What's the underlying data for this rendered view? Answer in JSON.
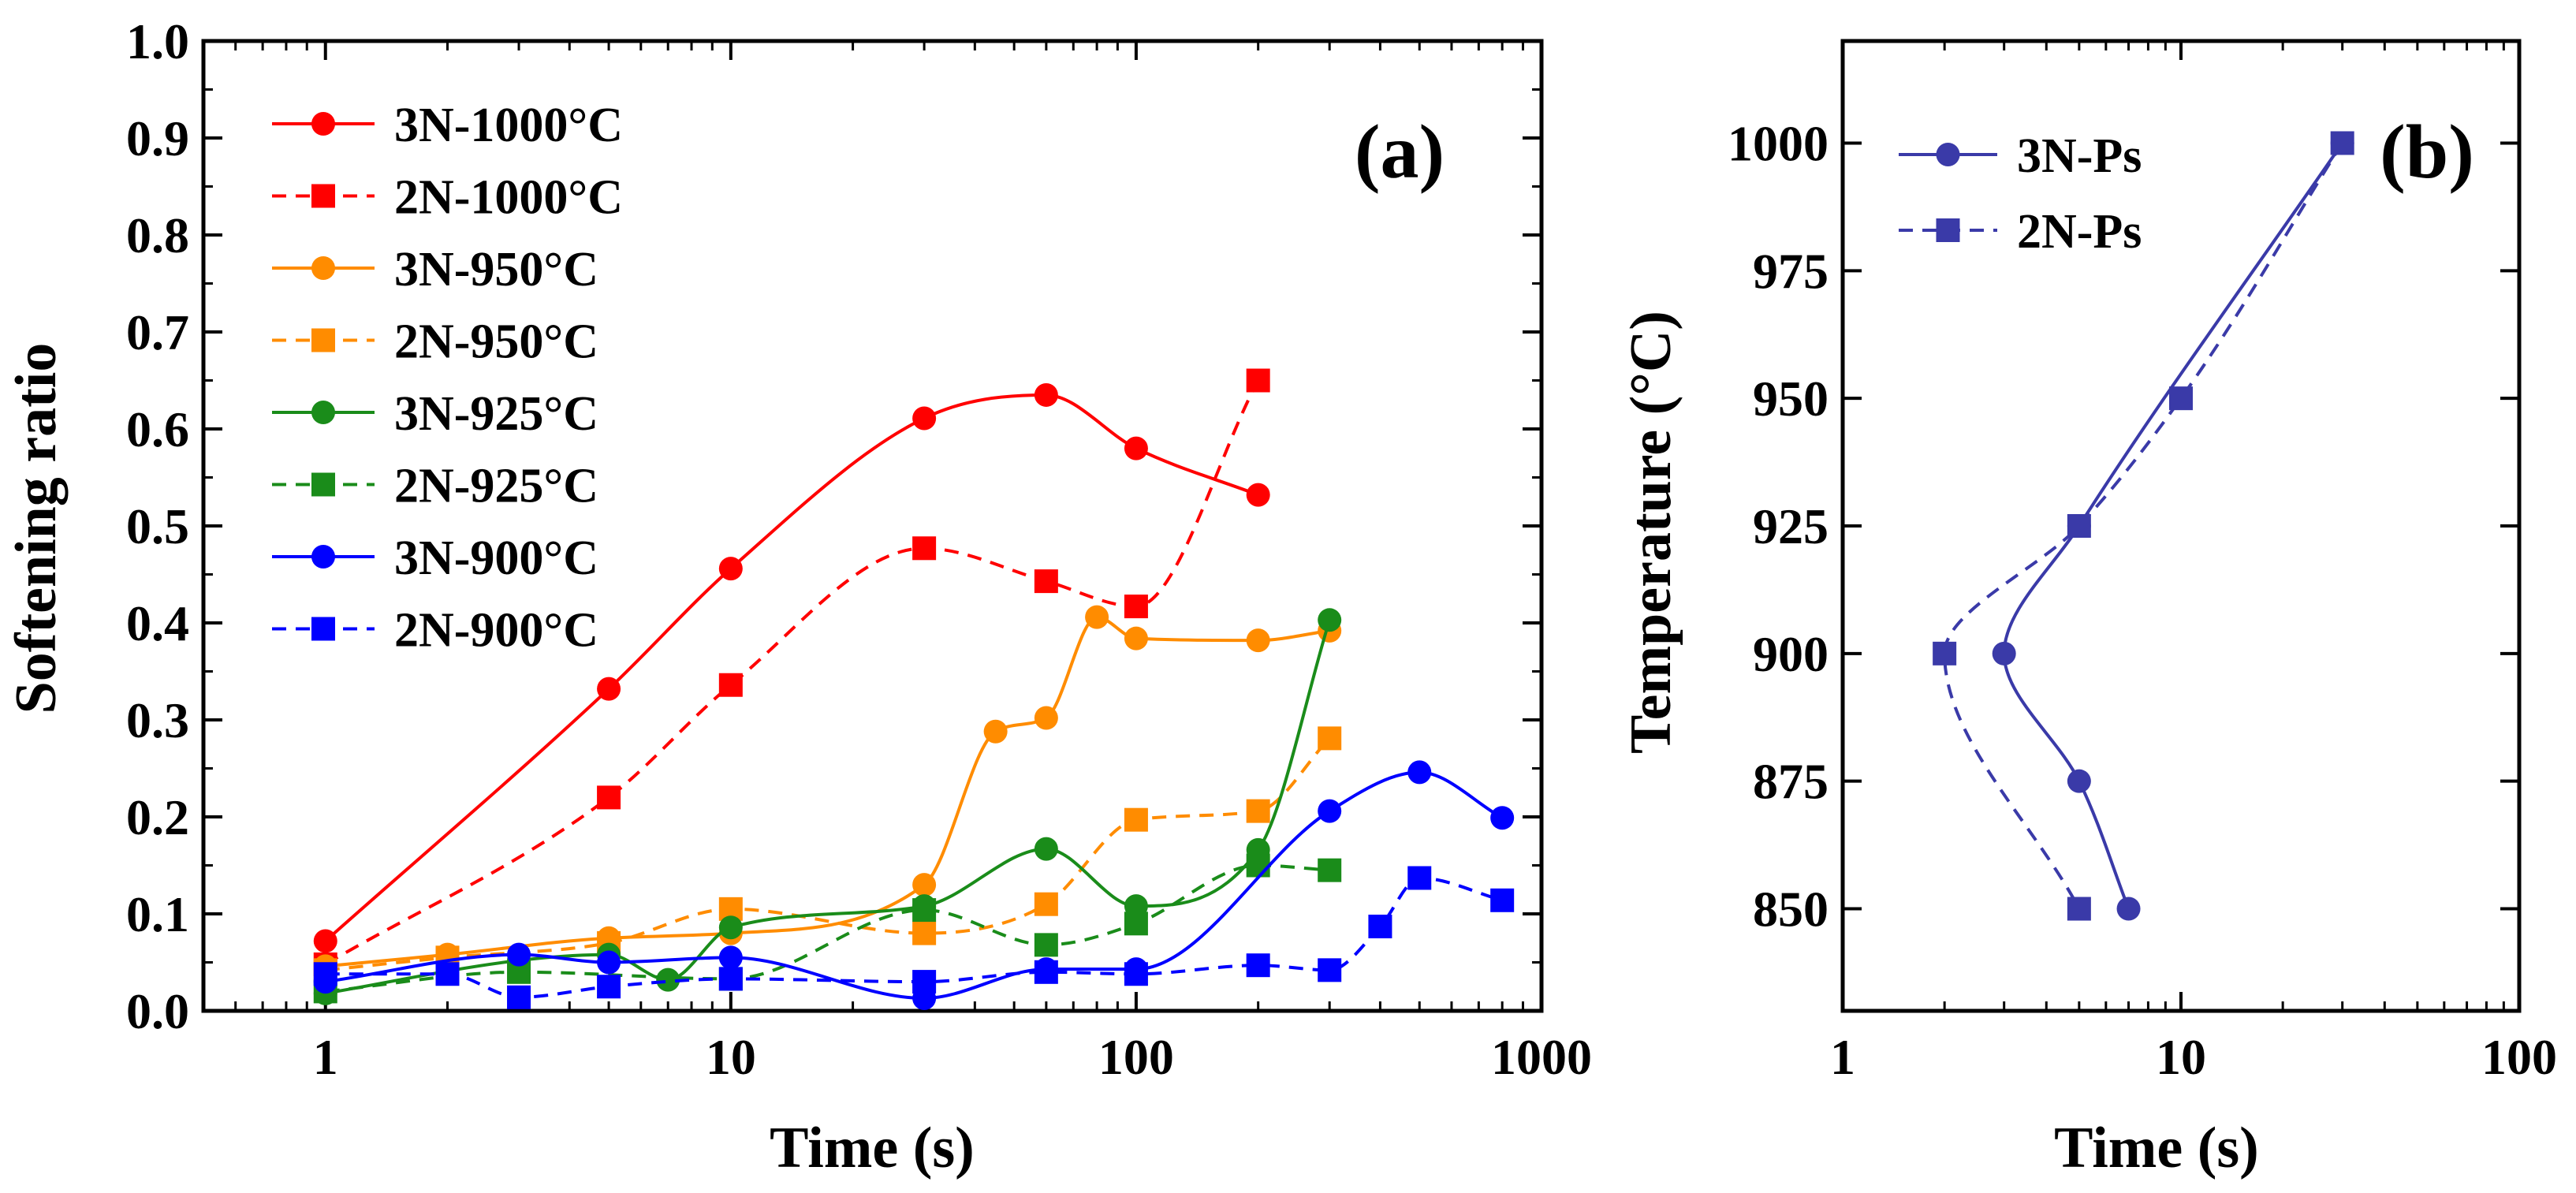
{
  "chart_data": [
    {
      "type": "scatter",
      "panel_label": "(a)",
      "xlabel": "Time (s)",
      "ylabel": "Softening ratio",
      "xscale": "log",
      "xlim": [
        0.5,
        1000
      ],
      "ylim": [
        0.0,
        1.0
      ],
      "x_ticks": [
        1,
        10,
        100,
        1000
      ],
      "x_tick_labels": [
        "1",
        "10",
        "100",
        "1000"
      ],
      "y_ticks": [
        0,
        0.1,
        0.2,
        0.3,
        0.4,
        0.5,
        0.6,
        0.7,
        0.8,
        0.9,
        1.0
      ],
      "y_tick_labels": [
        "0.0",
        "0.1",
        "0.2",
        "0.3",
        "0.4",
        "0.5",
        "0.6",
        "0.7",
        "0.8",
        "0.9",
        "1.0"
      ],
      "legend_position": "top-left",
      "series": [
        {
          "name": "3N-1000°C",
          "color": "#ff0000",
          "marker": "circle",
          "dash": "solid",
          "x": [
            1,
            5,
            10,
            30,
            60,
            100,
            200
          ],
          "y": [
            0.072,
            0.332,
            0.456,
            0.611,
            0.635,
            0.58,
            0.532
          ]
        },
        {
          "name": "2N-1000°C",
          "color": "#ff0000",
          "marker": "square",
          "dash": "dashed",
          "x": [
            1,
            5,
            10,
            30,
            60,
            100,
            200
          ],
          "y": [
            0.048,
            0.22,
            0.336,
            0.477,
            0.443,
            0.417,
            0.65
          ]
        },
        {
          "name": "3N-950°C",
          "color": "#ff8c00",
          "marker": "circle",
          "dash": "solid",
          "x": [
            1,
            2,
            5,
            10,
            30,
            45,
            60,
            80,
            100,
            200,
            300
          ],
          "y": [
            0.046,
            0.058,
            0.075,
            0.08,
            0.13,
            0.288,
            0.302,
            0.406,
            0.384,
            0.382,
            0.392
          ]
        },
        {
          "name": "2N-950°C",
          "color": "#ff8c00",
          "marker": "square",
          "dash": "dashed",
          "x": [
            1,
            2,
            5,
            10,
            30,
            60,
            100,
            200,
            300
          ],
          "y": [
            0.042,
            0.055,
            0.07,
            0.105,
            0.08,
            0.11,
            0.197,
            0.206,
            0.281
          ]
        },
        {
          "name": "3N-925°C",
          "color": "#1a8c1a",
          "marker": "circle",
          "dash": "solid",
          "x": [
            1,
            3,
            5,
            7,
            10,
            30,
            60,
            100,
            200,
            300
          ],
          "y": [
            0.018,
            0.052,
            0.058,
            0.032,
            0.086,
            0.108,
            0.167,
            0.108,
            0.166,
            0.403
          ]
        },
        {
          "name": "2N-925°C",
          "color": "#1a8c1a",
          "marker": "square",
          "dash": "dashed",
          "x": [
            1,
            3,
            10,
            30,
            60,
            100,
            200,
            300
          ],
          "y": [
            0.02,
            0.04,
            0.033,
            0.104,
            0.068,
            0.09,
            0.15,
            0.145
          ]
        },
        {
          "name": "3N-900°C",
          "color": "#0000ff",
          "marker": "circle",
          "dash": "solid",
          "x": [
            1,
            3,
            5,
            10,
            30,
            60,
            100,
            300,
            500,
            800
          ],
          "y": [
            0.03,
            0.058,
            0.05,
            0.055,
            0.013,
            0.043,
            0.043,
            0.206,
            0.246,
            0.199
          ]
        },
        {
          "name": "2N-900°C",
          "color": "#0000ff",
          "marker": "square",
          "dash": "dashed",
          "x": [
            1,
            2,
            3,
            5,
            10,
            30,
            60,
            100,
            200,
            300,
            400,
            500,
            800
          ],
          "y": [
            0.038,
            0.038,
            0.014,
            0.025,
            0.033,
            0.03,
            0.04,
            0.038,
            0.047,
            0.042,
            0.087,
            0.137,
            0.114
          ]
        }
      ]
    },
    {
      "type": "scatter",
      "panel_label": "(b)",
      "xlabel": "Time (s)",
      "ylabel": "Temperature (°C)",
      "xscale": "log",
      "xlim": [
        1,
        100
      ],
      "ylim": [
        830,
        1020
      ],
      "x_ticks": [
        1,
        10,
        100
      ],
      "x_tick_labels": [
        "1",
        "10",
        "100"
      ],
      "y_ticks": [
        850,
        875,
        900,
        925,
        950,
        975,
        1000
      ],
      "y_tick_labels": [
        "850",
        "875",
        "900",
        "925",
        "950",
        "975",
        "1000"
      ],
      "legend_position": "top-left",
      "series": [
        {
          "name": "3N-Ps",
          "color": "#3a3aa8",
          "marker": "circle",
          "dash": "solid",
          "x": [
            7,
            5,
            3,
            5,
            30
          ],
          "y": [
            850,
            875,
            900,
            925,
            1000
          ]
        },
        {
          "name": "2N-Ps",
          "color": "#3a3aa8",
          "marker": "square",
          "dash": "dashed",
          "x": [
            5,
            2,
            5,
            10,
            30
          ],
          "y": [
            850,
            900,
            925,
            950,
            1000
          ]
        }
      ]
    }
  ]
}
